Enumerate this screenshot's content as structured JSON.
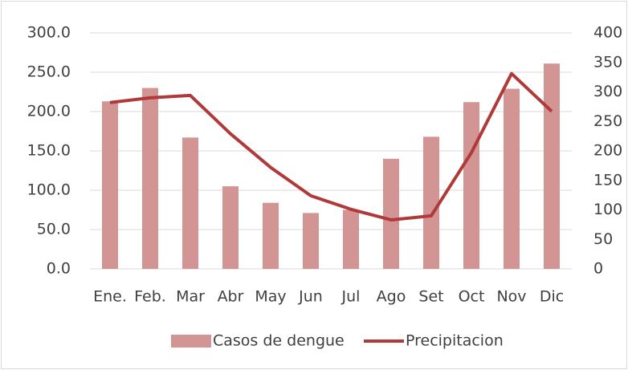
{
  "chart_data": {
    "type": "bar-line",
    "categories": [
      "Ene.",
      "Feb.",
      "Mar",
      "Abr",
      "May",
      "Jun",
      "Jul",
      "Ago",
      "Set",
      "Oct",
      "Nov",
      "Dic"
    ],
    "series": [
      {
        "name": "Casos de dengue",
        "type": "bar",
        "color": "#d39494",
        "values": [
          213,
          230,
          167,
          105,
          84,
          71,
          75,
          140,
          168,
          212,
          229,
          261
        ]
      },
      {
        "name": "Precipitacion",
        "type": "line",
        "axis": "y2",
        "color": "#b03a3a",
        "values": [
          282,
          290,
          294,
          229,
          172,
          124,
          101,
          83,
          90,
          197,
          331,
          267
        ]
      }
    ],
    "ylim": [
      0,
      300
    ],
    "yticks": [
      {
        "value": 0,
        "label": "0.0"
      },
      {
        "value": 50,
        "label": "50.0"
      },
      {
        "value": 100,
        "label": "100.0"
      },
      {
        "value": 150,
        "label": "150.0"
      },
      {
        "value": 200,
        "label": "200.0"
      },
      {
        "value": 250,
        "label": "250.0"
      },
      {
        "value": 300,
        "label": "300.0"
      }
    ],
    "y2lim": [
      0,
      400
    ],
    "y2ticks": [
      0,
      50,
      100,
      150,
      200,
      250,
      300,
      350,
      400
    ],
    "grid": true,
    "legend": "bottom"
  }
}
